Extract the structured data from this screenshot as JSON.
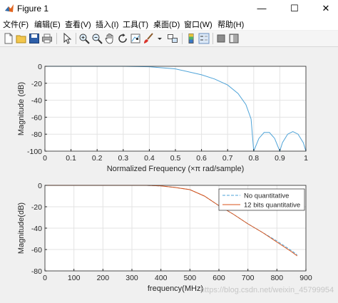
{
  "window": {
    "title": "Figure 1"
  },
  "window_controls": {
    "minimize": "—",
    "maximize": "☐",
    "close": "✕"
  },
  "menu": [
    "文件(F)",
    "编辑(E)",
    "查看(V)",
    "插入(I)",
    "工具(T)",
    "桌面(D)",
    "窗口(W)",
    "帮助(H)"
  ],
  "toolbar": [
    "new-figure",
    "open-file",
    "save",
    "print",
    "select-arrow",
    "zoom-in",
    "zoom-out",
    "pan",
    "rotate-3d",
    "data-cursor",
    "brush",
    "link-plot",
    "insert-colorbar",
    "insert-legend",
    "hide-plot-tools",
    "show-plot-tools"
  ],
  "colors": {
    "series1": "#4ea3d8",
    "series2": "#d95319",
    "figure_bg": "#f0f0f0",
    "axes_bg": "#ffffff",
    "grid": "#e3e3e3"
  },
  "chart_data": [
    {
      "type": "line",
      "xlabel": "Normalized Frequency  (×π rad/sample)",
      "ylabel": "Magnitude (dB)",
      "xlim": [
        0,
        1
      ],
      "ylim": [
        -100,
        0
      ],
      "xticks": [
        "0",
        "0.1",
        "0.2",
        "0.3",
        "0.4",
        "0.5",
        "0.6",
        "0.7",
        "0.8",
        "0.9",
        "1"
      ],
      "yticks": [
        "0",
        "-20",
        "-40",
        "-60",
        "-80",
        "-100"
      ],
      "grid": true,
      "series": [
        {
          "x": [
            0,
            0.3,
            0.4,
            0.5,
            0.6,
            0.65,
            0.7,
            0.74,
            0.77,
            0.79,
            0.8,
            0.8,
            0.82,
            0.84,
            0.86,
            0.88,
            0.9,
            0.9,
            0.91,
            0.93,
            0.95,
            0.97,
            0.99,
            1.0
          ],
          "y": [
            0,
            0,
            -0.5,
            -3,
            -10,
            -15,
            -22,
            -32,
            -45,
            -62,
            -100,
            -100,
            -85,
            -78,
            -78,
            -85,
            -100,
            -100,
            -90,
            -80,
            -77,
            -80,
            -90,
            -100
          ]
        }
      ]
    },
    {
      "type": "line",
      "xlabel": "frequency(MHz)",
      "ylabel": "Magnitude(dB)",
      "xlim": [
        0,
        900
      ],
      "ylim": [
        -80,
        0
      ],
      "xticks": [
        "0",
        "100",
        "200",
        "300",
        "400",
        "500",
        "600",
        "700",
        "800",
        "900"
      ],
      "yticks": [
        "0",
        "-20",
        "-40",
        "-60",
        "-80"
      ],
      "grid": true,
      "legend": {
        "placement": "top-right"
      },
      "series": [
        {
          "name": "No quantitative",
          "style": "dashed",
          "x": [
            0,
            350,
            400,
            450,
            500,
            550,
            600,
            650,
            700,
            750,
            800,
            850,
            870
          ],
          "y": [
            0,
            0,
            -0.5,
            -2,
            -4,
            -10,
            -19,
            -27,
            -36,
            -44,
            -52,
            -61,
            -65
          ]
        },
        {
          "name": "12 bits quantitative",
          "style": "solid",
          "x": [
            0,
            350,
            400,
            450,
            500,
            550,
            600,
            650,
            700,
            750,
            800,
            850,
            870
          ],
          "y": [
            0,
            0,
            -0.5,
            -2,
            -4,
            -10,
            -19,
            -27,
            -36,
            -44,
            -53,
            -62,
            -66
          ]
        }
      ]
    }
  ],
  "watermark": "https://blog.csdn.net/weixin_45799954"
}
